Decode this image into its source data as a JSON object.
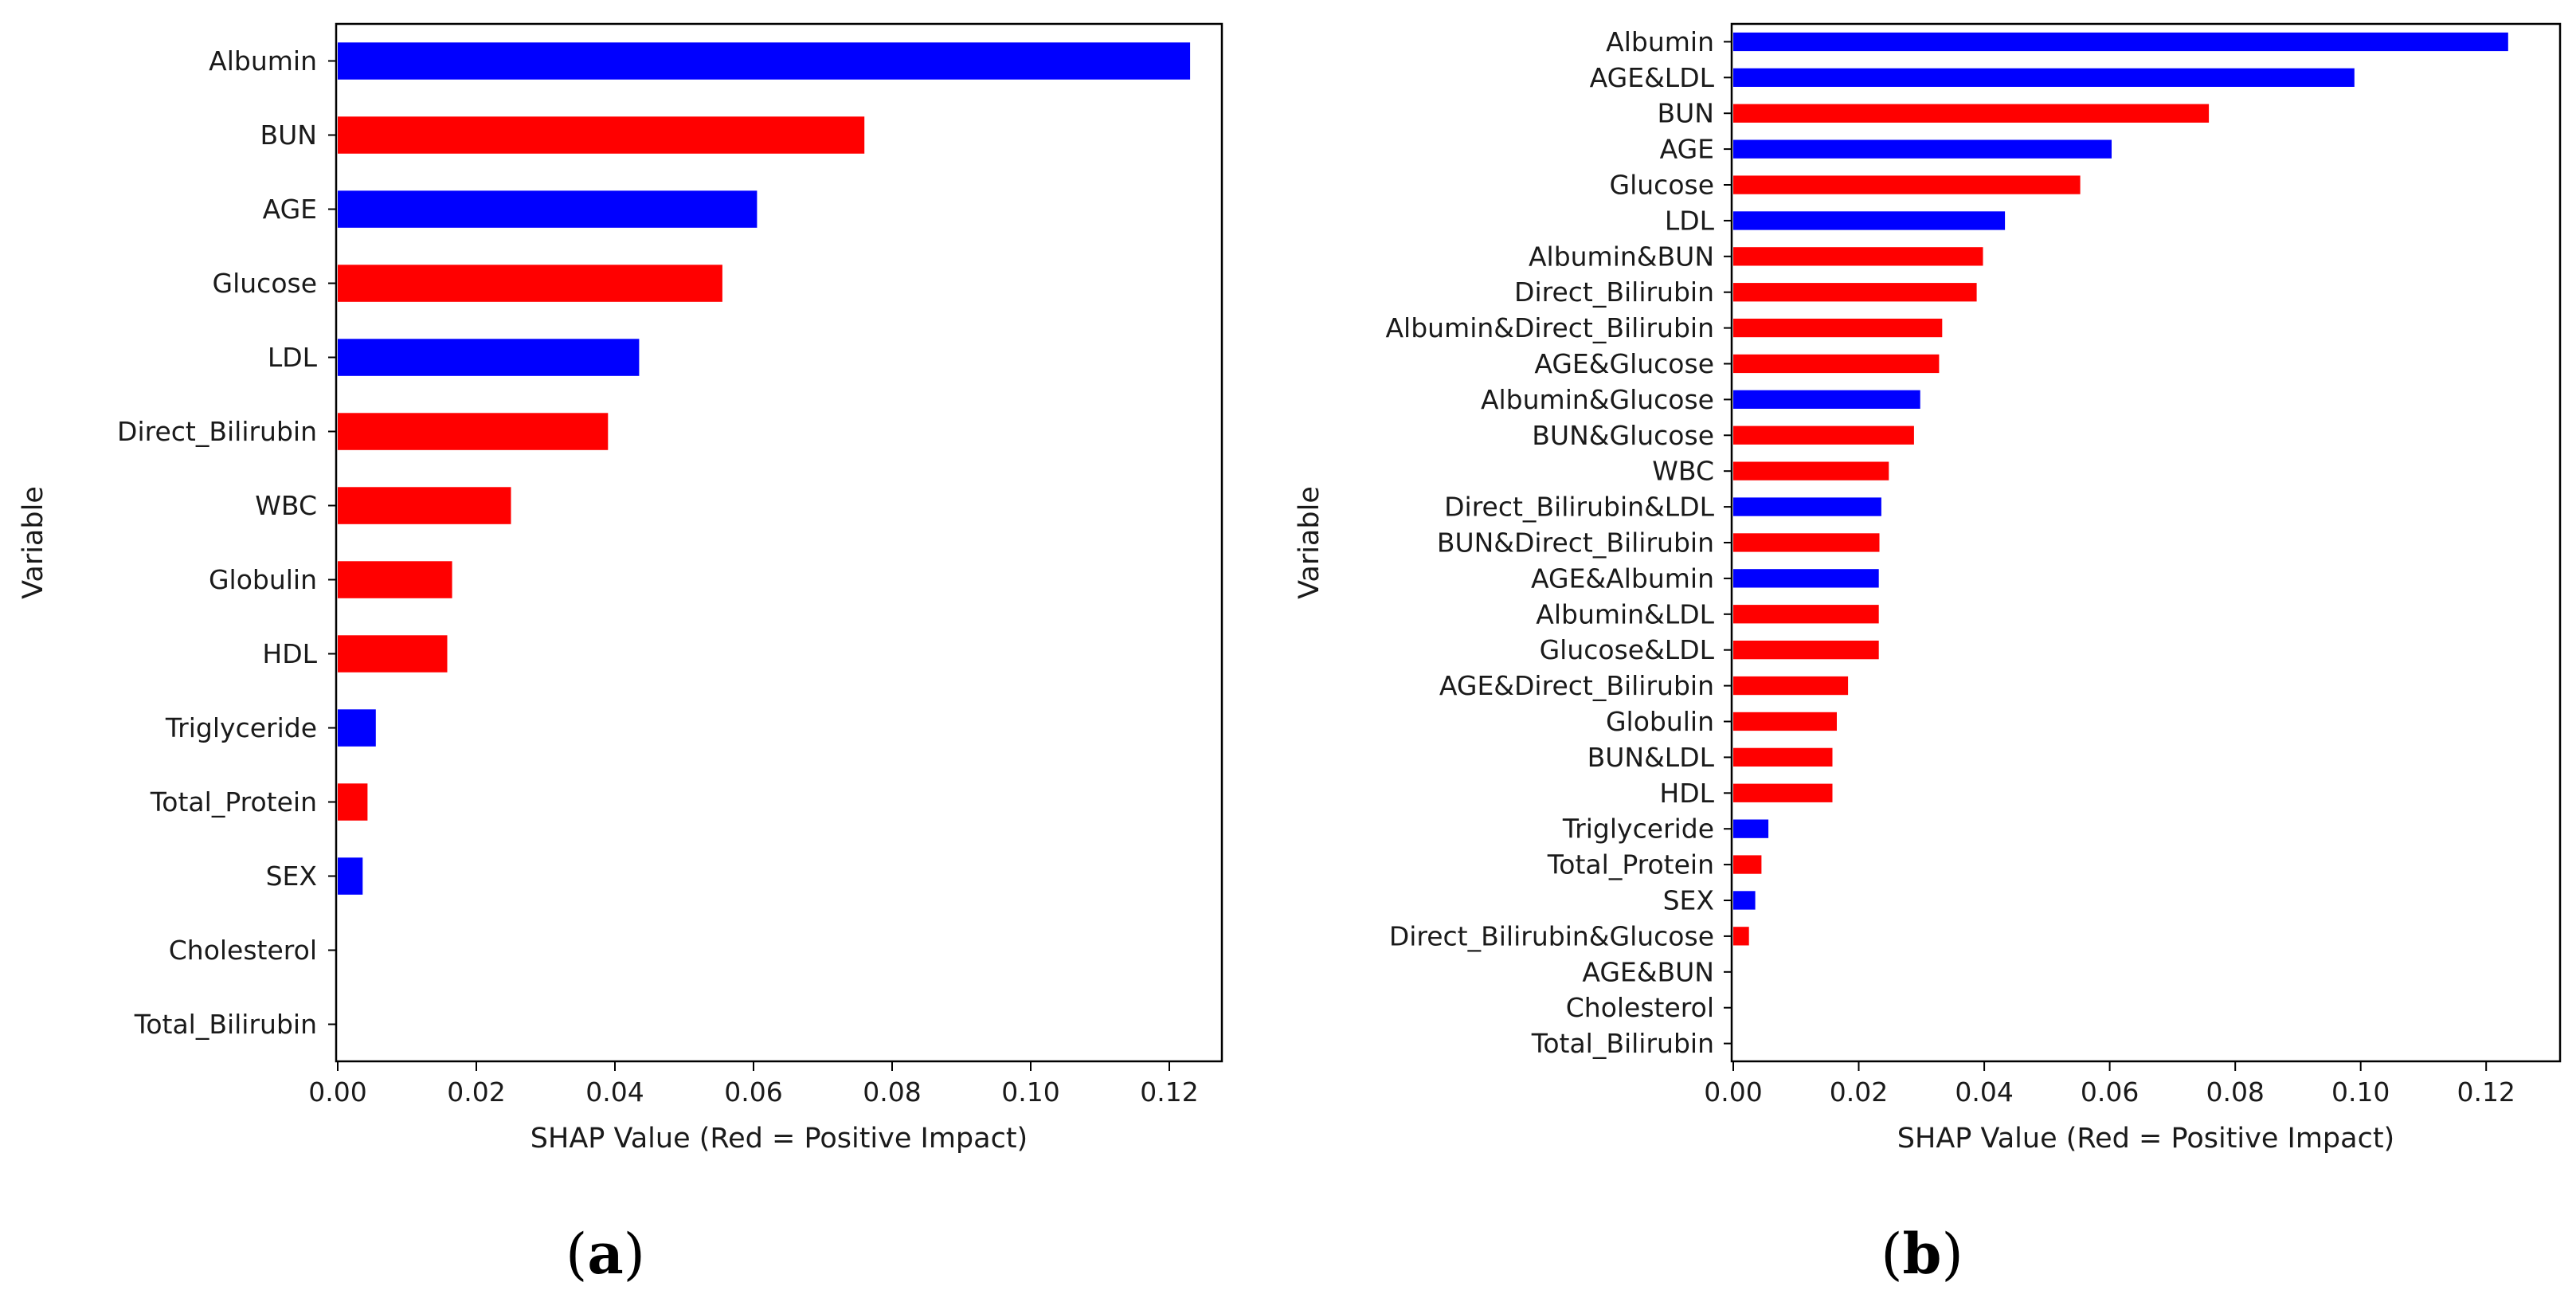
{
  "colors": {
    "positive": "#ff0000",
    "negative": "#0000ff",
    "axis": "#000000",
    "text": "#1a1a1a"
  },
  "chart_data": [
    {
      "type": "bar",
      "orientation": "horizontal",
      "panel": "a",
      "panel_label": {
        "open": "(",
        "letter": "a",
        "close": ")"
      },
      "title": "",
      "xlabel": "SHAP Value (Red = Positive Impact)",
      "ylabel": "Variable",
      "xlim": [
        0,
        0.13
      ],
      "xticks": [
        0.0,
        0.02,
        0.04,
        0.06,
        0.08,
        0.1,
        0.12
      ],
      "xtick_labels": [
        "0.00",
        "0.02",
        "0.04",
        "0.06",
        "0.08",
        "0.10",
        "0.12"
      ],
      "grid": false,
      "categories": [
        "Albumin",
        "BUN",
        "AGE",
        "Glucose",
        "LDL",
        "Direct_Bilirubin",
        "WBC",
        "Globulin",
        "HDL",
        "Triglyceride",
        "Total_Protein",
        "SEX",
        "Cholesterol",
        "Total_Bilirubin"
      ],
      "values": [
        0.123,
        0.076,
        0.0605,
        0.0555,
        0.0435,
        0.039,
        0.025,
        0.0165,
        0.0158,
        0.0055,
        0.0043,
        0.0036,
        0.0,
        0.0
      ],
      "impact": [
        "negative",
        "positive",
        "negative",
        "positive",
        "negative",
        "positive",
        "positive",
        "positive",
        "positive",
        "negative",
        "positive",
        "negative",
        "positive",
        "positive"
      ]
    },
    {
      "type": "bar",
      "orientation": "horizontal",
      "panel": "b",
      "panel_label": {
        "open": "(",
        "letter": "b",
        "close": ")"
      },
      "title": "",
      "xlabel": "SHAP Value (Red = Positive Impact)",
      "ylabel": "Variable",
      "xlim": [
        0,
        0.13
      ],
      "xticks": [
        0.0,
        0.02,
        0.04,
        0.06,
        0.08,
        0.1,
        0.12
      ],
      "xtick_labels": [
        "0.00",
        "0.02",
        "0.04",
        "0.06",
        "0.08",
        "0.10",
        "0.12"
      ],
      "grid": false,
      "categories": [
        "Albumin",
        "AGE&LDL",
        "BUN",
        "AGE",
        "Glucose",
        "LDL",
        "Albumin&BUN",
        "Direct_Bilirubin",
        "Albumin&Direct_Bilirubin",
        "AGE&Glucose",
        "Albumin&Glucose",
        "BUN&Glucose",
        "WBC",
        "Direct_Bilirubin&LDL",
        "BUN&Direct_Bilirubin",
        "AGE&Albumin",
        "Albumin&LDL",
        "Glucose&LDL",
        "AGE&Direct_Bilirubin",
        "Globulin",
        "BUN&LDL",
        "HDL",
        "Triglyceride",
        "Total_Protein",
        "SEX",
        "Direct_Bilirubin&Glucose",
        "AGE&BUN",
        "Cholesterol",
        "Total_Bilirubin"
      ],
      "values": [
        0.1235,
        0.099,
        0.0758,
        0.0603,
        0.0553,
        0.0433,
        0.0398,
        0.0388,
        0.0333,
        0.0328,
        0.0298,
        0.0288,
        0.0248,
        0.0236,
        0.0233,
        0.0232,
        0.0232,
        0.0232,
        0.0183,
        0.0165,
        0.0158,
        0.0158,
        0.0056,
        0.0045,
        0.0035,
        0.0025,
        0.0,
        0.0,
        0.0
      ],
      "impact": [
        "negative",
        "negative",
        "positive",
        "negative",
        "positive",
        "negative",
        "positive",
        "positive",
        "positive",
        "positive",
        "negative",
        "positive",
        "positive",
        "negative",
        "positive",
        "negative",
        "positive",
        "positive",
        "positive",
        "positive",
        "positive",
        "positive",
        "negative",
        "positive",
        "negative",
        "positive",
        "positive",
        "positive",
        "positive"
      ]
    }
  ]
}
